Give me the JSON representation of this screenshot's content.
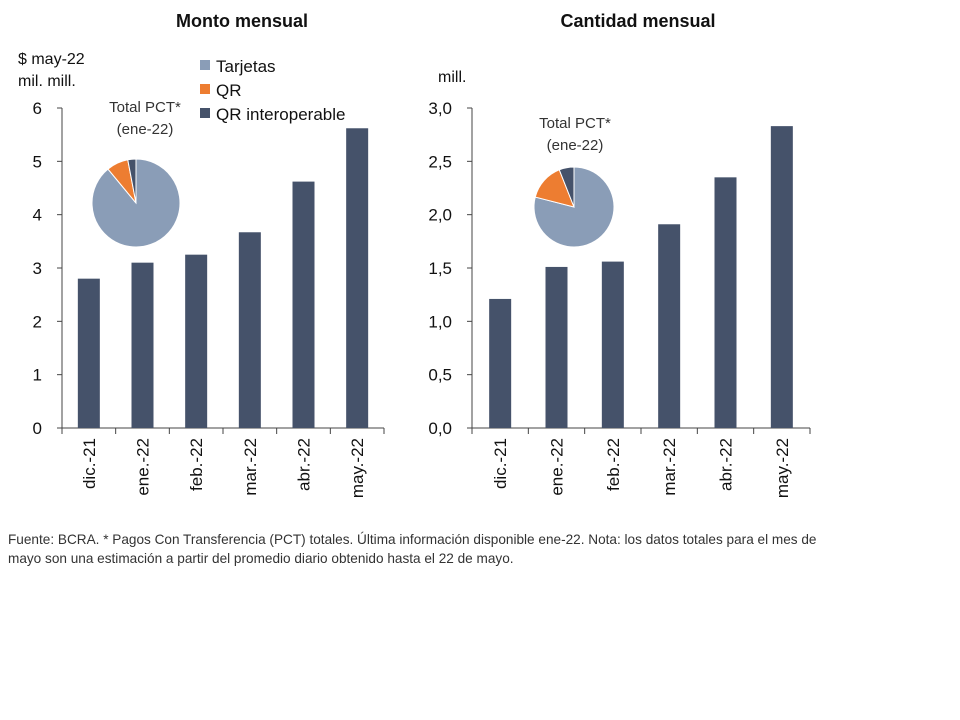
{
  "colors": {
    "bar": "#45526a",
    "tarjetas": "#8a9db7",
    "qr": "#ed7d31",
    "qr_interop": "#45526a",
    "axis": "#444444"
  },
  "legend": {
    "items": [
      "Tarjetas",
      "QR",
      "QR interoperable"
    ]
  },
  "chart_data": [
    {
      "type": "bar",
      "title": "Monto mensual",
      "unit_lines": [
        "$ may-22",
        "mil. mill."
      ],
      "categories": [
        "dic.-21",
        "ene.-22",
        "feb.-22",
        "mar.-22",
        "abr.-22",
        "may.-22"
      ],
      "values": [
        2.8,
        3.1,
        3.25,
        3.67,
        4.62,
        5.62
      ],
      "ylim": [
        0,
        6
      ],
      "yticks": [
        0,
        1,
        2,
        3,
        4,
        5,
        6
      ],
      "ytick_labels": [
        "0",
        "1",
        "2",
        "3",
        "4",
        "5",
        "6"
      ],
      "inset_pie": {
        "label_lines": [
          "Total PCT*",
          "(ene-22)"
        ],
        "slices": [
          {
            "name": "Tarjetas",
            "value": 89
          },
          {
            "name": "QR",
            "value": 8
          },
          {
            "name": "QR interoperable",
            "value": 3
          }
        ]
      }
    },
    {
      "type": "bar",
      "title": "Cantidad mensual",
      "unit_lines": [
        "mill."
      ],
      "categories": [
        "dic.-21",
        "ene.-22",
        "feb.-22",
        "mar.-22",
        "abr.-22",
        "may.-22"
      ],
      "values": [
        1.21,
        1.51,
        1.56,
        1.91,
        2.35,
        2.83
      ],
      "ylim": [
        0,
        3
      ],
      "yticks": [
        0,
        0.5,
        1,
        1.5,
        2,
        2.5,
        3
      ],
      "ytick_labels": [
        "0,0",
        "0,5",
        "1,0",
        "1,5",
        "2,0",
        "2,5",
        "3,0"
      ],
      "inset_pie": {
        "label_lines": [
          "Total PCT*",
          "(ene-22)"
        ],
        "slices": [
          {
            "name": "Tarjetas",
            "value": 79
          },
          {
            "name": "QR",
            "value": 15
          },
          {
            "name": "QR interoperable",
            "value": 6
          }
        ]
      }
    }
  ],
  "footnote": "Fuente: BCRA. * Pagos Con Transferencia (PCT) totales. Última información disponible ene-22. Nota: los datos totales para el mes de mayo son una estimación a partir del promedio diario obtenido hasta el 22 de mayo."
}
